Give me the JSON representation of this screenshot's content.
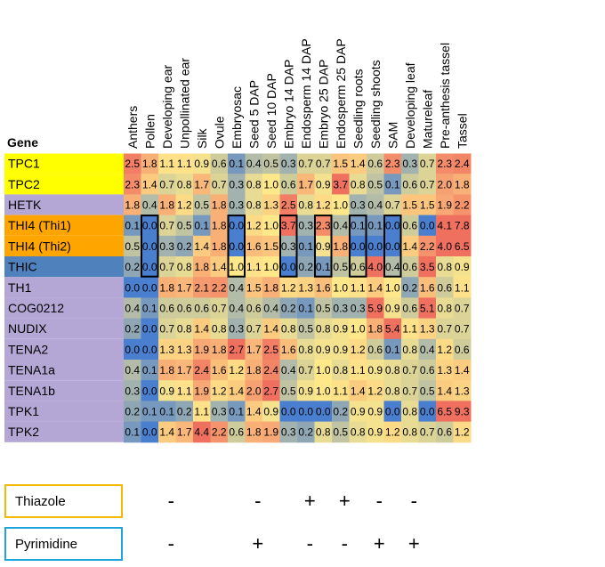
{
  "chart_data": {
    "type": "heatmap",
    "row_header": "Gene",
    "columns": [
      "Anthers",
      "Pollen",
      "Developing ear",
      "Unpollinated ear",
      "Silk",
      "Ovule",
      "Embryosac",
      "Seed 5 DAP",
      "Seed 10 DAP",
      "Embryo 14 DAP",
      "Endosperm 14 DAP",
      "Embryo 25 DAP",
      "Endosperm 25 DAP",
      "Seedling roots",
      "Seedling shoots",
      "SAM",
      "Developing leaf",
      "Matureleaf",
      "Pre-anthesis tassel",
      "Tassel"
    ],
    "rows": [
      {
        "gene": "TPC1",
        "color": "#ffff00",
        "values": [
          2.5,
          1.8,
          1.1,
          1.1,
          0.9,
          0.6,
          0.1,
          0.4,
          0.5,
          0.3,
          0.7,
          0.7,
          1.5,
          1.4,
          0.6,
          2.3,
          0.3,
          0.7,
          2.3,
          2.4
        ]
      },
      {
        "gene": "TPC2",
        "color": "#ffff00",
        "values": [
          2.3,
          1.4,
          0.7,
          0.8,
          1.7,
          0.7,
          0.3,
          0.8,
          1.0,
          0.6,
          1.7,
          0.9,
          3.7,
          0.8,
          0.5,
          0.1,
          0.6,
          0.7,
          2.0,
          1.8
        ]
      },
      {
        "gene": "HETK",
        "color": "#b4a7d6",
        "values": [
          1.8,
          0.4,
          1.8,
          1.2,
          0.5,
          1.8,
          0.3,
          0.8,
          1.3,
          2.5,
          0.8,
          1.2,
          1.0,
          0.3,
          0.4,
          0.7,
          1.5,
          1.5,
          1.9,
          2.2
        ]
      },
      {
        "gene": "THI4 (Thi1)",
        "color": "#ffa500",
        "values": [
          0.1,
          0.0,
          0.7,
          0.5,
          0.1,
          1.8,
          0.0,
          1.2,
          1.0,
          3.7,
          0.3,
          2.3,
          0.4,
          0.1,
          0.1,
          0.0,
          0.6,
          0.0,
          4.1,
          7.8
        ]
      },
      {
        "gene": "THI4 (Thi2)",
        "color": "#ffa500",
        "values": [
          0.5,
          0.0,
          0.3,
          0.2,
          1.4,
          1.8,
          0.0,
          1.6,
          1.5,
          0.3,
          0.1,
          0.9,
          1.8,
          0.0,
          0.0,
          0.0,
          1.4,
          2.2,
          4.0,
          6.5
        ]
      },
      {
        "gene": "THIC",
        "color": "#4f81bd",
        "values": [
          0.2,
          0.0,
          0.7,
          0.8,
          1.8,
          1.4,
          1.0,
          1.1,
          1.0,
          0.0,
          0.2,
          0.1,
          0.5,
          0.6,
          4.0,
          0.4,
          0.6,
          3.5,
          0.8,
          0.9
        ]
      },
      {
        "gene": "TH1",
        "color": "#b4a7d6",
        "values": [
          0.0,
          0.0,
          1.8,
          1.7,
          2.1,
          2.2,
          0.4,
          1.5,
          1.8,
          1.2,
          1.3,
          1.6,
          1.0,
          1.1,
          1.4,
          1.0,
          0.2,
          1.6,
          0.6,
          1.1
        ]
      },
      {
        "gene": "COG0212",
        "color": "#b4a7d6",
        "values": [
          0.4,
          0.1,
          0.6,
          0.6,
          0.6,
          0.7,
          0.4,
          0.6,
          0.4,
          0.2,
          0.1,
          0.5,
          0.3,
          0.3,
          5.9,
          0.9,
          0.6,
          5.1,
          0.8,
          0.7
        ]
      },
      {
        "gene": "NUDIX",
        "color": "#b4a7d6",
        "values": [
          0.2,
          0.0,
          0.7,
          0.8,
          1.4,
          0.8,
          0.3,
          0.7,
          1.4,
          0.8,
          0.5,
          0.8,
          0.9,
          1.0,
          1.8,
          5.4,
          1.1,
          1.3,
          0.7,
          0.7
        ]
      },
      {
        "gene": "TENA2",
        "color": "#b4a7d6",
        "values": [
          0.0,
          0.0,
          1.3,
          1.3,
          1.9,
          1.8,
          2.7,
          1.7,
          2.5,
          1.6,
          0.8,
          0.9,
          0.9,
          1.2,
          0.6,
          0.1,
          0.8,
          0.4,
          1.2,
          0.6
        ]
      },
      {
        "gene": "TENA1a",
        "color": "#b4a7d6",
        "values": [
          0.4,
          0.1,
          1.8,
          1.7,
          2.4,
          1.6,
          1.2,
          1.8,
          2.4,
          0.4,
          0.7,
          1.0,
          0.8,
          1.1,
          0.9,
          0.8,
          0.7,
          0.6,
          1.3,
          1.4
        ]
      },
      {
        "gene": "TENA1b",
        "color": "#b4a7d6",
        "values": [
          0.3,
          0.0,
          0.9,
          1.1,
          1.9,
          1.2,
          1.4,
          2.0,
          2.7,
          0.5,
          0.9,
          1.0,
          1.1,
          1.4,
          1.2,
          0.8,
          0.7,
          0.5,
          1.4,
          1.3
        ]
      },
      {
        "gene": "TPK1",
        "color": "#b4a7d6",
        "values": [
          0.2,
          0.1,
          0.1,
          0.2,
          1.1,
          0.3,
          0.1,
          1.4,
          0.9,
          0.0,
          0.0,
          0.0,
          0.2,
          0.9,
          0.9,
          0.0,
          0.8,
          0.0,
          6.5,
          9.3
        ]
      },
      {
        "gene": "TPK2",
        "color": "#b4a7d6",
        "values": [
          0.1,
          0.0,
          1.4,
          1.7,
          4.4,
          2.2,
          0.6,
          1.8,
          1.9,
          0.3,
          0.2,
          0.8,
          0.5,
          0.8,
          0.9,
          1.2,
          0.8,
          0.7,
          0.6,
          1.2
        ]
      }
    ],
    "highlight_boxes": [
      {
        "column": "Pollen",
        "from_gene": "THI4 (Thi1)",
        "to_gene": "THIC"
      },
      {
        "column": "Embryosac",
        "from_gene": "THI4 (Thi1)",
        "to_gene": "THIC"
      },
      {
        "column": "Embryo 14 DAP",
        "from_gene": "THI4 (Thi1)",
        "to_gene": "THIC"
      },
      {
        "column": "Embryo 25 DAP",
        "from_gene": "THI4 (Thi1)",
        "to_gene": "THIC"
      },
      {
        "column": "Seedling roots",
        "from_gene": "THI4 (Thi1)",
        "to_gene": "THIC"
      },
      {
        "column": "SAM",
        "from_gene": "THI4 (Thi1)",
        "to_gene": "THIC"
      }
    ],
    "legend": [
      {
        "label": "Thiazole",
        "color": "#f5b800",
        "signs": [
          {
            "column": "Pollen",
            "sign": "-"
          },
          {
            "column": "Embryosac",
            "sign": "-"
          },
          {
            "column": "Embryo 14 DAP",
            "sign": "+"
          },
          {
            "column": "Embryo 25 DAP",
            "sign": "+"
          },
          {
            "column": "Seedling roots",
            "sign": "-"
          },
          {
            "column": "SAM",
            "sign": "-"
          }
        ]
      },
      {
        "label": "Pyrimidine",
        "color": "#1fa3dc",
        "signs": [
          {
            "column": "Pollen",
            "sign": "-"
          },
          {
            "column": "Embryosac",
            "sign": "+"
          },
          {
            "column": "Embryo 14 DAP",
            "sign": "-"
          },
          {
            "column": "Embryo 25 DAP",
            "sign": "-"
          },
          {
            "column": "Seedling roots",
            "sign": "+"
          },
          {
            "column": "SAM",
            "sign": "+"
          }
        ]
      }
    ],
    "colors": {
      "low": "#4a7fd0",
      "mid": "#ffe88a",
      "high": "#f07060"
    }
  }
}
